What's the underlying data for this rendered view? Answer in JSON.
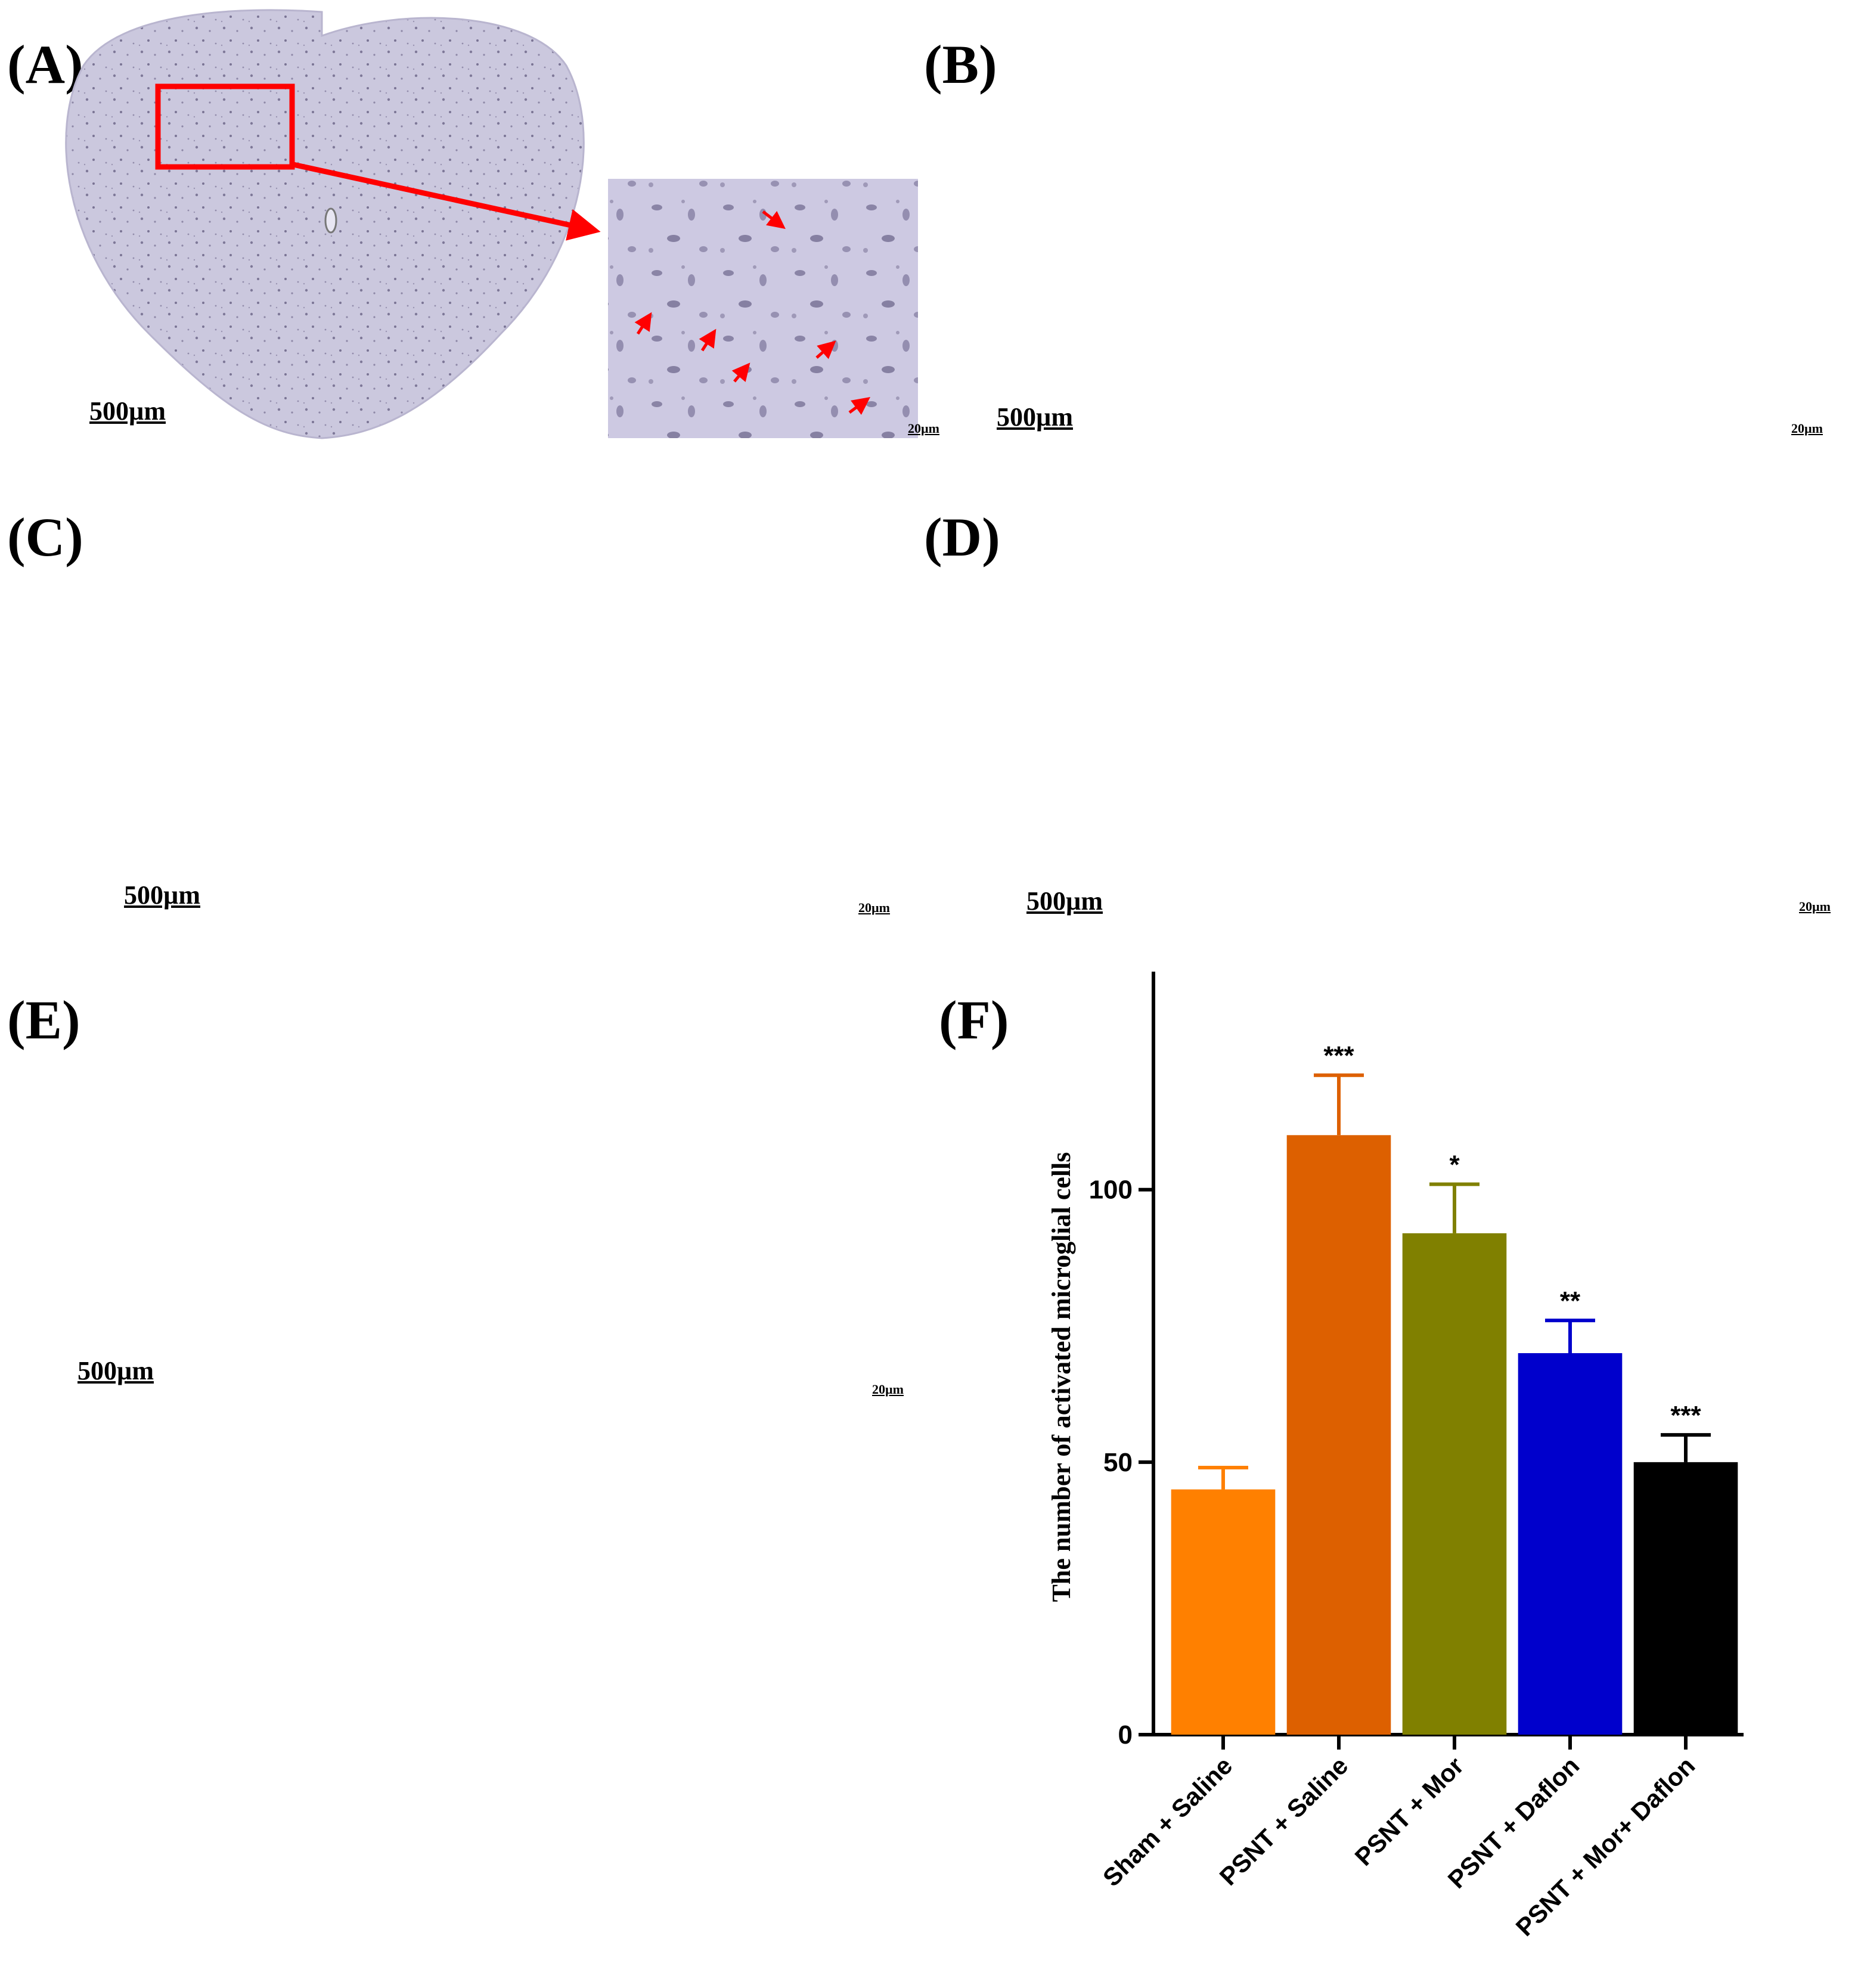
{
  "panels": {
    "A": {
      "label": "(A)",
      "scale_large": "500µm",
      "scale_small": "20µm"
    },
    "B": {
      "label": "(B)",
      "scale_large": "500µm",
      "scale_small": "20µm"
    },
    "C": {
      "label": "(C)",
      "scale_large": "500µm",
      "scale_small": "20µm"
    },
    "D": {
      "label": "(D)",
      "scale_large": "500µm",
      "scale_small": "20µm"
    },
    "E": {
      "label": "(E)",
      "scale_large": "500µm",
      "scale_small": "20µm"
    },
    "F": {
      "label": "(F)"
    }
  },
  "colors": {
    "tissue": "#c9c6dc",
    "tissue_dark": "#8f8aaa",
    "highlight_box": "#ff0000",
    "arrow": "#ff0000"
  },
  "chart_data": {
    "type": "bar",
    "categories": [
      "Sham + Saline",
      "PSNT + Saline",
      "PSNT + Mor",
      "PSNT + Daflon",
      "PSNT + Mor+ Daflon"
    ],
    "values": [
      45,
      110,
      92,
      70,
      50
    ],
    "errors": [
      4,
      11,
      9,
      6,
      5
    ],
    "significance": [
      "",
      "***",
      "*",
      "**",
      "***"
    ],
    "colors": [
      "#ff8000",
      "#dd6000",
      "#808000",
      "#0000cc",
      "#000000"
    ],
    "ylabel": "The number of activated microglial cells",
    "xlabel": "",
    "yticks": [
      0,
      50,
      100
    ],
    "ylim": [
      0,
      140
    ]
  }
}
